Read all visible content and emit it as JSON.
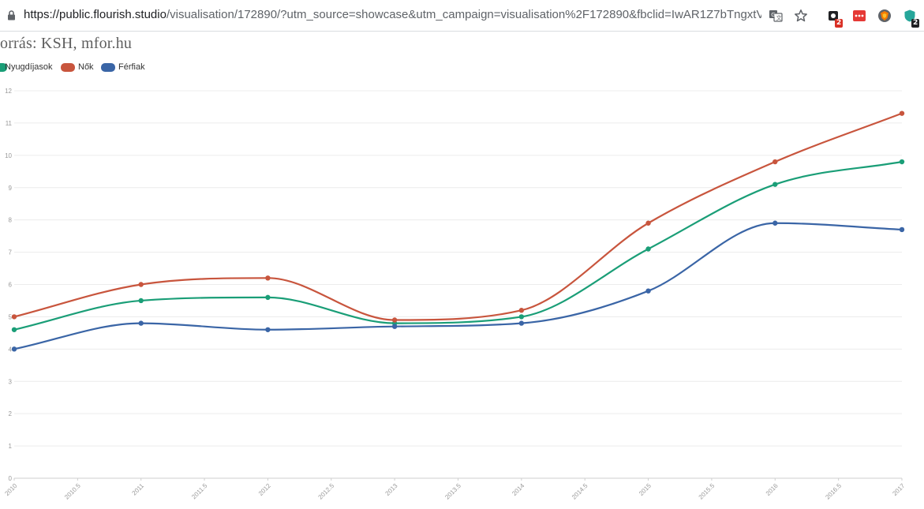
{
  "browser": {
    "url_host": "https://public.flourish.studio",
    "url_rest": "/visualisation/172890/?utm_source=showcase&utm_campaign=visualisation%2F172890&fbclid=IwAR1Z7bTngxtVl23xH3...",
    "extension_badges": [
      "2",
      "2"
    ]
  },
  "subtitle": "orrás: KSH, mfor.hu",
  "chart_data": {
    "type": "line",
    "x": [
      2010,
      2011,
      2012,
      2013,
      2014,
      2015,
      2016,
      2017
    ],
    "series": [
      {
        "name": "Nyugdíjasok",
        "color": "#1a9e77",
        "values": [
          4.6,
          5.5,
          5.6,
          4.8,
          5.0,
          7.1,
          9.1,
          9.8
        ]
      },
      {
        "name": "Nők",
        "color": "#c8553d",
        "values": [
          5.0,
          6.0,
          6.2,
          4.9,
          5.2,
          7.9,
          9.8,
          11.3
        ]
      },
      {
        "name": "Férfiak",
        "color": "#3a65a6",
        "values": [
          4.0,
          4.8,
          4.6,
          4.7,
          4.8,
          5.8,
          7.9,
          7.7
        ]
      }
    ],
    "xticks": [
      "2010",
      "2010.5",
      "2011",
      "2011.5",
      "2012",
      "2012.5",
      "2013",
      "2013.5",
      "2014",
      "2014.5",
      "2015",
      "2015.5",
      "2016",
      "2016.5",
      "2017"
    ],
    "yticks": [
      "0",
      "1",
      "2",
      "3",
      "4",
      "5",
      "6",
      "7",
      "8",
      "9",
      "10",
      "11",
      "12"
    ],
    "xlim": [
      2010,
      2017
    ],
    "ylim": [
      0,
      12
    ],
    "grid": "horizontal",
    "legend_position": "top-left",
    "curve": "smooth"
  }
}
